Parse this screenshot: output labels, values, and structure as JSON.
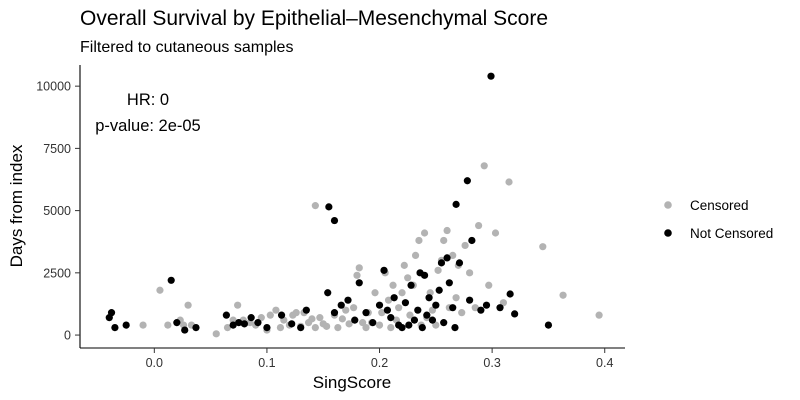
{
  "chart_data": {
    "type": "scatter",
    "title": "Overall Survival by Epithelial–Mesenchymal Score",
    "subtitle": "Filtered to cutaneous samples",
    "xlabel": "SingScore",
    "ylabel": "Days from index",
    "xlim": [
      -0.066,
      0.418
    ],
    "ylim": [
      -520,
      10850
    ],
    "xticks": [
      0.0,
      0.1,
      0.2,
      0.3,
      0.4
    ],
    "xtick_labels": [
      "0.0",
      "0.1",
      "0.2",
      "0.3",
      "0.4"
    ],
    "yticks": [
      0,
      2500,
      5000,
      7500,
      10000
    ],
    "ytick_labels": [
      "0",
      "2500",
      "5000",
      "7500",
      "10000"
    ],
    "grid": false,
    "legend_position": "right",
    "annotations": {
      "hr": "HR: 0",
      "pvalue": "p-value: 2e-05"
    },
    "series": [
      {
        "name": "Censored",
        "color": "#b3b3b3",
        "points": [
          [
            -0.01,
            400
          ],
          [
            0.005,
            1800
          ],
          [
            0.012,
            400
          ],
          [
            0.023,
            600
          ],
          [
            0.026,
            400
          ],
          [
            0.03,
            1200
          ],
          [
            0.033,
            400
          ],
          [
            0.055,
            50
          ],
          [
            0.065,
            300
          ],
          [
            0.07,
            600
          ],
          [
            0.074,
            1200
          ],
          [
            0.079,
            600
          ],
          [
            0.085,
            500
          ],
          [
            0.09,
            400
          ],
          [
            0.095,
            700
          ],
          [
            0.1,
            200
          ],
          [
            0.103,
            800
          ],
          [
            0.108,
            1000
          ],
          [
            0.112,
            300
          ],
          [
            0.115,
            600
          ],
          [
            0.12,
            400
          ],
          [
            0.123,
            800
          ],
          [
            0.126,
            900
          ],
          [
            0.13,
            350
          ],
          [
            0.133,
            900
          ],
          [
            0.137,
            500
          ],
          [
            0.14,
            650
          ],
          [
            0.143,
            300
          ],
          [
            0.147,
            700
          ],
          [
            0.15,
            450
          ],
          [
            0.153,
            350
          ],
          [
            0.143,
            5200
          ],
          [
            0.16,
            800
          ],
          [
            0.163,
            300
          ],
          [
            0.167,
            650
          ],
          [
            0.17,
            1000
          ],
          [
            0.173,
            450
          ],
          [
            0.177,
            1100
          ],
          [
            0.18,
            2400
          ],
          [
            0.182,
            2700
          ],
          [
            0.185,
            500
          ],
          [
            0.188,
            300
          ],
          [
            0.19,
            900
          ],
          [
            0.193,
            500
          ],
          [
            0.196,
            1700
          ],
          [
            0.2,
            400
          ],
          [
            0.202,
            900
          ],
          [
            0.205,
            2500
          ],
          [
            0.208,
            1400
          ],
          [
            0.21,
            300
          ],
          [
            0.212,
            2000
          ],
          [
            0.215,
            600
          ],
          [
            0.217,
            1100
          ],
          [
            0.22,
            1700
          ],
          [
            0.222,
            2800
          ],
          [
            0.225,
            2300
          ],
          [
            0.227,
            800
          ],
          [
            0.23,
            2000
          ],
          [
            0.232,
            3200
          ],
          [
            0.235,
            3800
          ],
          [
            0.237,
            400
          ],
          [
            0.24,
            4100
          ],
          [
            0.242,
            700
          ],
          [
            0.245,
            1700
          ],
          [
            0.247,
            1000
          ],
          [
            0.25,
            400
          ],
          [
            0.252,
            2600
          ],
          [
            0.255,
            3000
          ],
          [
            0.257,
            3800
          ],
          [
            0.26,
            4200
          ],
          [
            0.262,
            1100
          ],
          [
            0.265,
            3200
          ],
          [
            0.268,
            1500
          ],
          [
            0.27,
            2800
          ],
          [
            0.273,
            900
          ],
          [
            0.276,
            3600
          ],
          [
            0.28,
            2500
          ],
          [
            0.285,
            1100
          ],
          [
            0.288,
            4400
          ],
          [
            0.293,
            6800
          ],
          [
            0.297,
            2000
          ],
          [
            0.303,
            4100
          ],
          [
            0.31,
            1300
          ],
          [
            0.315,
            6150
          ],
          [
            0.345,
            3550
          ],
          [
            0.363,
            1600
          ],
          [
            0.395,
            800
          ]
        ]
      },
      {
        "name": "Not Censored",
        "color": "#000000",
        "points": [
          [
            -0.04,
            700
          ],
          [
            -0.038,
            900
          ],
          [
            -0.035,
            300
          ],
          [
            -0.025,
            400
          ],
          [
            0.015,
            2200
          ],
          [
            0.02,
            500
          ],
          [
            0.027,
            200
          ],
          [
            0.037,
            300
          ],
          [
            0.064,
            800
          ],
          [
            0.07,
            400
          ],
          [
            0.075,
            500
          ],
          [
            0.08,
            450
          ],
          [
            0.086,
            700
          ],
          [
            0.092,
            500
          ],
          [
            0.1,
            300
          ],
          [
            0.113,
            800
          ],
          [
            0.122,
            450
          ],
          [
            0.13,
            300
          ],
          [
            0.135,
            1000
          ],
          [
            0.155,
            5150
          ],
          [
            0.16,
            4600
          ],
          [
            0.154,
            1700
          ],
          [
            0.16,
            900
          ],
          [
            0.166,
            1200
          ],
          [
            0.172,
            1400
          ],
          [
            0.178,
            600
          ],
          [
            0.182,
            2100
          ],
          [
            0.188,
            900
          ],
          [
            0.194,
            500
          ],
          [
            0.2,
            1200
          ],
          [
            0.204,
            2600
          ],
          [
            0.207,
            1000
          ],
          [
            0.21,
            700
          ],
          [
            0.213,
            1500
          ],
          [
            0.217,
            400
          ],
          [
            0.22,
            300
          ],
          [
            0.223,
            1300
          ],
          [
            0.226,
            400
          ],
          [
            0.228,
            2000
          ],
          [
            0.231,
            600
          ],
          [
            0.234,
            1000
          ],
          [
            0.236,
            2500
          ],
          [
            0.238,
            300
          ],
          [
            0.24,
            2400
          ],
          [
            0.242,
            800
          ],
          [
            0.244,
            1500
          ],
          [
            0.247,
            600
          ],
          [
            0.25,
            1200
          ],
          [
            0.253,
            1800
          ],
          [
            0.255,
            2900
          ],
          [
            0.257,
            500
          ],
          [
            0.26,
            3100
          ],
          [
            0.262,
            2100
          ],
          [
            0.265,
            1100
          ],
          [
            0.267,
            300
          ],
          [
            0.268,
            5250
          ],
          [
            0.271,
            2900
          ],
          [
            0.278,
            6200
          ],
          [
            0.28,
            1400
          ],
          [
            0.282,
            3800
          ],
          [
            0.29,
            1000
          ],
          [
            0.295,
            1200
          ],
          [
            0.299,
            10400
          ],
          [
            0.307,
            1100
          ],
          [
            0.316,
            1650
          ],
          [
            0.32,
            850
          ],
          [
            0.35,
            400
          ]
        ]
      }
    ]
  }
}
